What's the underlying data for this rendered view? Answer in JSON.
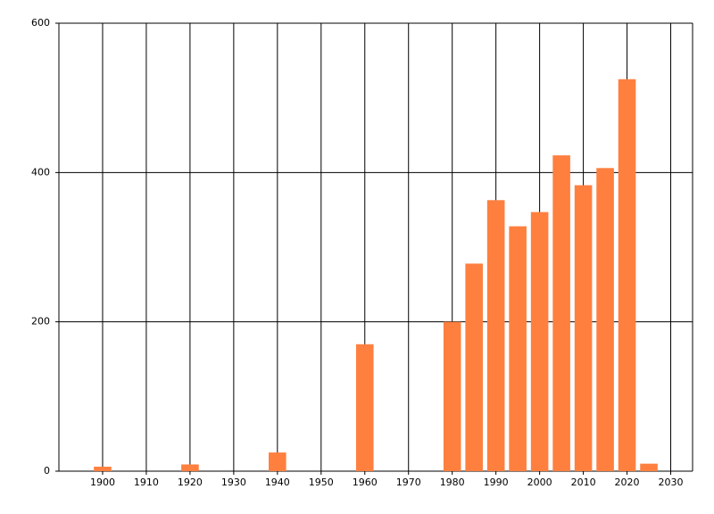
{
  "chart_data": {
    "type": "bar",
    "x": [
      1900,
      1920,
      1940,
      1960,
      1980,
      1985,
      1990,
      1995,
      2000,
      2005,
      2010,
      2015,
      2020,
      2025
    ],
    "values": [
      6,
      9,
      25,
      170,
      200,
      278,
      363,
      328,
      347,
      423,
      383,
      406,
      525,
      10
    ],
    "color": "#ff7f3f",
    "xlim": [
      1890,
      2035
    ],
    "xticks": [
      1900,
      1910,
      1920,
      1930,
      1940,
      1950,
      1960,
      1970,
      1980,
      1990,
      2000,
      2010,
      2020,
      2030
    ],
    "ylim": [
      0,
      600
    ],
    "yticks": [
      0,
      200,
      400,
      600
    ],
    "grid": true
  }
}
